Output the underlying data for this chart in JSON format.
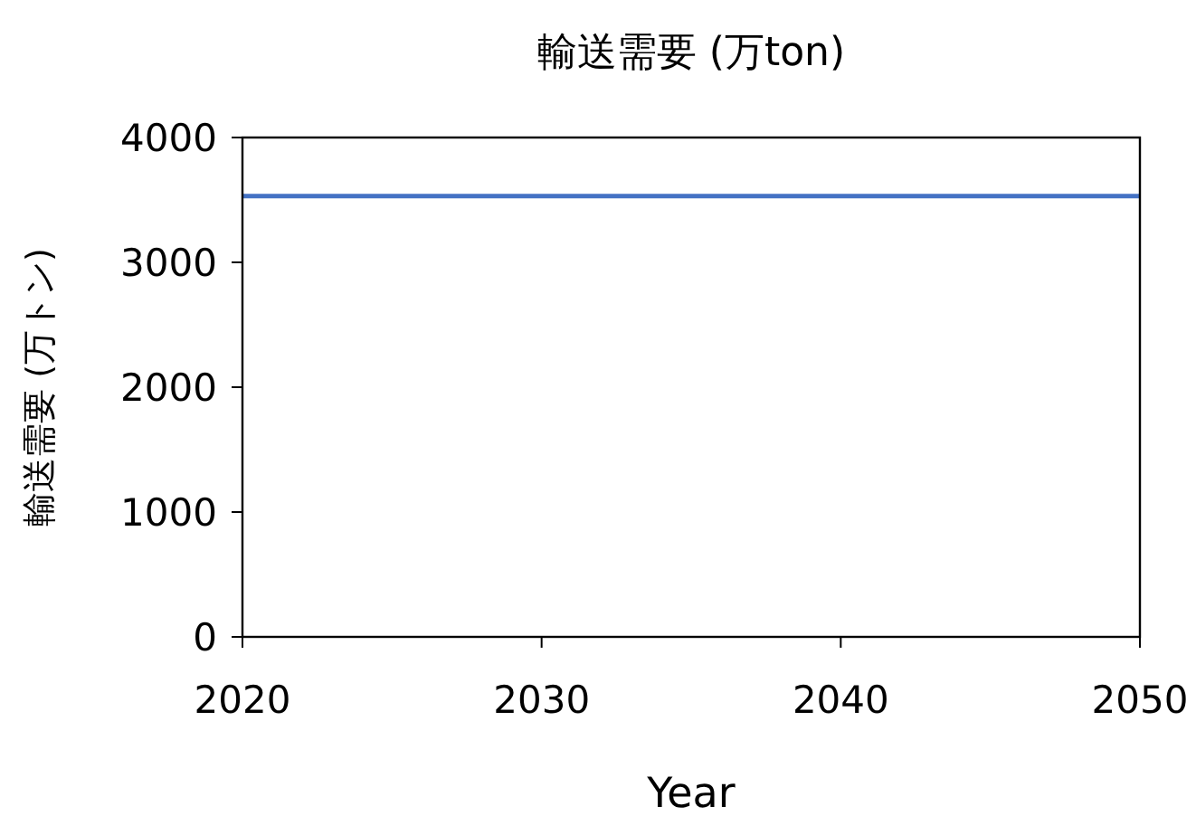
{
  "chart_data": {
    "type": "line",
    "title": "輸送需要 (万ton)",
    "xlabel": "Year",
    "ylabel": "輸送需要 (万トン)",
    "x": [
      2020,
      2050
    ],
    "series": [
      {
        "color": "#4472c4",
        "values": [
          3530,
          3530
        ]
      }
    ],
    "xlim": [
      2020,
      2050
    ],
    "xticks": [
      2020,
      2030,
      2040,
      2050
    ],
    "ylim": [
      0,
      4000
    ],
    "yticks": [
      0,
      1000,
      2000,
      3000,
      4000
    ],
    "grid": false,
    "marker": "none",
    "line_style": "solid"
  }
}
